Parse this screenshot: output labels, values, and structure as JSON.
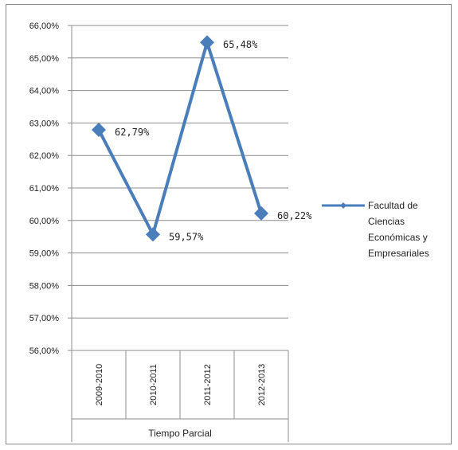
{
  "chart_data": {
    "type": "line",
    "title": "",
    "xlabel": "Tiempo Parcial",
    "ylabel": "",
    "categories": [
      "2009-2010",
      "2010-2011",
      "2011-2012",
      "2012-2013"
    ],
    "series": [
      {
        "name": "Facultad de Ciencias Económicas y Empresariales",
        "values": [
          62.79,
          59.57,
          65.48,
          60.22
        ],
        "labels": [
          "62,79%",
          "59,57%",
          "65,48%",
          "60,22%"
        ],
        "color": "#4a7ebb"
      }
    ],
    "ylim": [
      56,
      66
    ],
    "yticks": [
      "56,00%",
      "57,00%",
      "58,00%",
      "59,00%",
      "60,00%",
      "61,00%",
      "62,00%",
      "63,00%",
      "64,00%",
      "65,00%",
      "66,00%"
    ],
    "legend_lines": [
      "Facultad de",
      "Ciencias",
      "Económicas y",
      "Empresariales"
    ],
    "legend_position": "right",
    "grid": true
  }
}
